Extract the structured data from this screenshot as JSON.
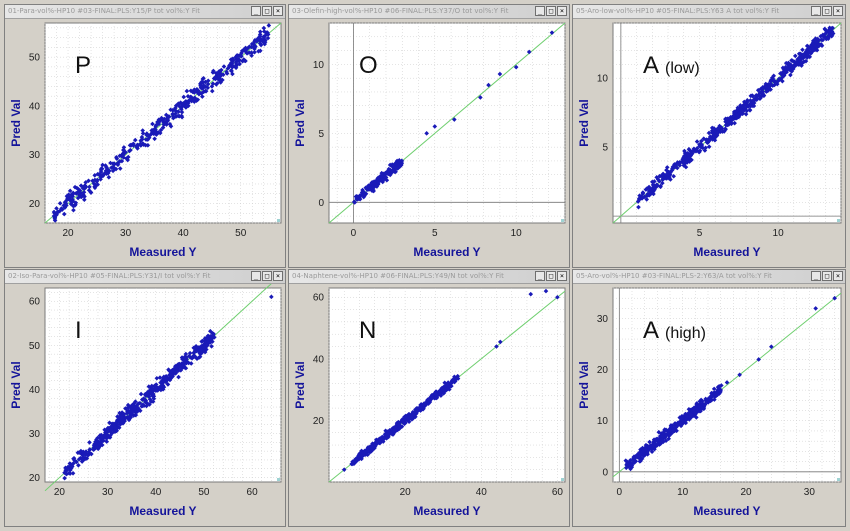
{
  "colors": {
    "point": "#1a1ab8",
    "fit_line": "#6fcf6f",
    "axis_label": "#14149a",
    "grid": "#c9c9c9",
    "plot_bg": "#ffffff"
  },
  "window_controls": {
    "minimize": "_",
    "maximize": "□",
    "close": "×"
  },
  "panels": [
    {
      "title": "01-Para-vol%-HP10 #03-FINAL:PLS:Y15/P tot vol%:Y Fit",
      "letter": "P",
      "letter_sub": "",
      "xlabel": "Measured Y",
      "ylabel": "Pred Val"
    },
    {
      "title": "03-Olefin-high-vol%-HP10 #06-FINAL:PLS:Y37/O tot vol%:Y Fit",
      "letter": "O",
      "letter_sub": "",
      "xlabel": "Measured Y",
      "ylabel": "Pred Val"
    },
    {
      "title": "05-Aro-low-vol%-HP10 #05-FINAL:PLS:Y63 A tot vol%:Y Fit",
      "letter": "A",
      "letter_sub": "(low)",
      "xlabel": "Measured Y",
      "ylabel": "Pred Val"
    },
    {
      "title": "02-Iso-Para-vol%-HP10 #05-FINAL:PLS:Y31/I tot vol%:Y Fit",
      "letter": "I",
      "letter_sub": "",
      "xlabel": "Measured Y",
      "ylabel": "Pred Val"
    },
    {
      "title": "04-Naphtene-vol%-HP10 #06-FINAL:PLS:Y49/N tot vol%:Y Fit",
      "letter": "N",
      "letter_sub": "",
      "xlabel": "Measured Y",
      "ylabel": "Pred Val"
    },
    {
      "title": "05-Aro-vol%-HP10 #03-FINAL:PLS-2:Y63/A tot vol%:Y Fit",
      "letter": "A",
      "letter_sub": "(high)",
      "xlabel": "Measured Y",
      "ylabel": "Pred Val"
    }
  ],
  "chart_data": [
    {
      "type": "scatter",
      "name": "P",
      "xlim": [
        16,
        57
      ],
      "ylim": [
        16,
        57
      ],
      "xticks": [
        20,
        30,
        40,
        50
      ],
      "yticks": [
        20,
        30,
        40,
        50
      ],
      "xlabel": "Measured Y",
      "ylabel": "Pred Val",
      "fit_line": [
        [
          16,
          16
        ],
        [
          57,
          57
        ]
      ],
      "point_range": [
        17.5,
        55
      ],
      "noise": 1.4,
      "n_points": 420,
      "sample_points": [
        [
          18,
          19
        ],
        [
          25,
          24.5
        ],
        [
          30,
          30.5
        ],
        [
          35,
          34.5
        ],
        [
          40,
          40.5
        ],
        [
          45,
          44
        ],
        [
          50,
          50.5
        ],
        [
          54,
          53
        ]
      ]
    },
    {
      "type": "scatter",
      "name": "O",
      "xlim": [
        -1.5,
        13
      ],
      "ylim": [
        -1.5,
        13
      ],
      "xticks": [
        0,
        5,
        10
      ],
      "yticks": [
        0,
        5,
        10
      ],
      "xlabel": "Measured Y",
      "ylabel": "Pred Val",
      "fit_line": [
        [
          -1.5,
          -1.5
        ],
        [
          13,
          13
        ]
      ],
      "point_range": [
        0,
        3
      ],
      "noise": 0.25,
      "n_points": 160,
      "sample_points": [
        [
          4.5,
          5.0
        ],
        [
          5.0,
          5.5
        ],
        [
          6.2,
          6.0
        ],
        [
          7.8,
          7.6
        ],
        [
          8.3,
          8.5
        ],
        [
          9.0,
          9.3
        ],
        [
          10.0,
          9.8
        ],
        [
          10.8,
          10.9
        ],
        [
          12.2,
          12.3
        ]
      ]
    },
    {
      "type": "scatter",
      "name": "A (low)",
      "xlim": [
        -0.5,
        14
      ],
      "ylim": [
        -0.5,
        14
      ],
      "xticks": [
        5,
        10
      ],
      "yticks": [
        5,
        10
      ],
      "xlabel": "Measured Y",
      "ylabel": "Pred Val",
      "fit_line": [
        [
          -0.5,
          -0.5
        ],
        [
          14,
          14
        ]
      ],
      "point_range": [
        1,
        13.5
      ],
      "noise": 0.35,
      "n_points": 520,
      "sample_points": [
        [
          1.2,
          1.3
        ],
        [
          3,
          3.1
        ],
        [
          5,
          5.2
        ],
        [
          7,
          6.8
        ],
        [
          9,
          9.2
        ],
        [
          11,
          10.8
        ],
        [
          13,
          13.2
        ]
      ]
    },
    {
      "type": "scatter",
      "name": "I",
      "xlim": [
        17,
        66
      ],
      "ylim": [
        19,
        63
      ],
      "xticks": [
        20,
        30,
        40,
        50,
        60
      ],
      "yticks": [
        20,
        30,
        40,
        50,
        60
      ],
      "xlabel": "Measured Y",
      "ylabel": "Pred Val",
      "fit_line": [
        [
          17,
          17
        ],
        [
          66,
          66
        ]
      ],
      "point_range": [
        21,
        52
      ],
      "noise": 1.3,
      "n_points": 480,
      "sample_points": [
        [
          22,
          21
        ],
        [
          30,
          30.5
        ],
        [
          36,
          35
        ],
        [
          42,
          42.5
        ],
        [
          50,
          49.5
        ],
        [
          64,
          61
        ]
      ]
    },
    {
      "type": "scatter",
      "name": "N",
      "xlim": [
        0,
        62
      ],
      "ylim": [
        0,
        63
      ],
      "xticks": [
        20,
        40,
        60
      ],
      "yticks": [
        20,
        40,
        60
      ],
      "xlabel": "Measured Y",
      "ylabel": "Pred Val",
      "fit_line": [
        [
          0,
          0
        ],
        [
          62,
          62
        ]
      ],
      "point_range": [
        6,
        34
      ],
      "noise": 0.9,
      "n_points": 420,
      "sample_points": [
        [
          4,
          4
        ],
        [
          10,
          10.5
        ],
        [
          20,
          20.5
        ],
        [
          30,
          30
        ],
        [
          44,
          44
        ],
        [
          45,
          45.5
        ],
        [
          53,
          61
        ],
        [
          57,
          62
        ],
        [
          60,
          60
        ]
      ]
    },
    {
      "type": "scatter",
      "name": "A (high)",
      "xlim": [
        -1,
        35
      ],
      "ylim": [
        -2,
        36
      ],
      "xticks": [
        0,
        10,
        20,
        30
      ],
      "yticks": [
        0,
        10,
        20,
        30
      ],
      "xlabel": "Measured Y",
      "ylabel": "Pred Val",
      "fit_line": [
        [
          -1,
          -1
        ],
        [
          35,
          35
        ]
      ],
      "point_range": [
        1,
        16
      ],
      "noise": 0.8,
      "n_points": 380,
      "sample_points": [
        [
          17,
          17.5
        ],
        [
          19,
          19
        ],
        [
          22,
          22
        ],
        [
          24,
          24.5
        ],
        [
          31,
          32
        ],
        [
          34,
          34
        ]
      ]
    }
  ]
}
